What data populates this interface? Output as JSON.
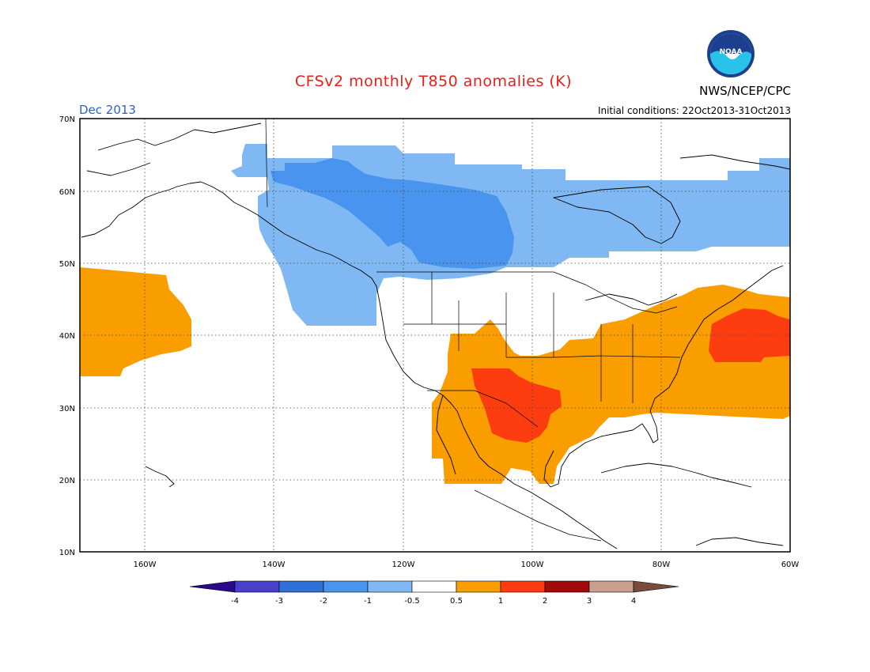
{
  "header": {
    "title": "CFSv2 monthly T850 anomalies (K)",
    "month": "Dec 2013",
    "initial_conditions": "Initial conditions: 22Oct2013-31Oct2013",
    "org": "NWS/NCEP/CPC",
    "logo_text": "NOAA"
  },
  "axes": {
    "lat_labels": [
      "70N",
      "60N",
      "50N",
      "40N",
      "30N",
      "20N",
      "10N"
    ],
    "lon_labels": [
      "160W",
      "140W",
      "120W",
      "100W",
      "80W",
      "60W"
    ]
  },
  "colorbar": {
    "labels": [
      "-4",
      "-3",
      "-2",
      "-1",
      "-0.5",
      "0.5",
      "1",
      "2",
      "3",
      "4"
    ],
    "colors": {
      "lt-4": "#2a0a8c",
      "-4to-3": "#4a3fcc",
      "-3to-2": "#2e6fd8",
      "-2to-1": "#4894ee",
      "-1to-0.5": "#7fb8f2",
      "-0.5to0.5": "#ffffff",
      "0.5to1": "#fa9e00",
      "1to2": "#fd3d10",
      "2to3": "#a10a0a",
      "3to4": "#c8a08c",
      "gt4": "#7a4a3a"
    }
  },
  "map_data": {
    "domain": {
      "lon": [
        -170,
        -60
      ],
      "lat": [
        10,
        70
      ]
    },
    "anomaly_regions": [
      {
        "name": "north-canada-cold",
        "level": "-1to-0.5"
      },
      {
        "name": "western-canada-cold-core",
        "level": "-2to-1"
      },
      {
        "name": "north-pacific-warm",
        "level": "0.5to1"
      },
      {
        "name": "southern-us-mexico-warm",
        "level": "0.5to1"
      },
      {
        "name": "texas-warm-core",
        "level": "1to2"
      },
      {
        "name": "northwest-atlantic-warm-core",
        "level": "1to2"
      }
    ]
  }
}
